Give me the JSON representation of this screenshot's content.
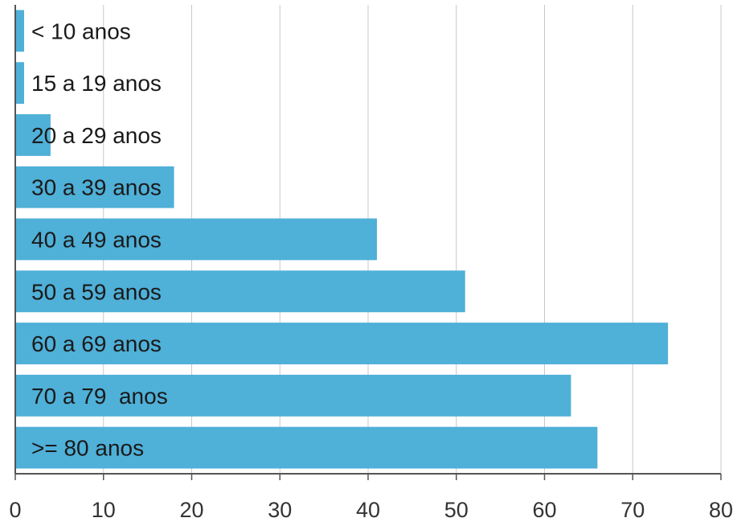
{
  "chart_data": {
    "type": "bar",
    "orientation": "horizontal",
    "categories": [
      "< 10 anos",
      "15 a 19 anos",
      "20 a 29 anos",
      "30 a 39 anos",
      "40 a 49 anos",
      "50 a 59 anos",
      "60 a 69 anos",
      "70 a 79  anos",
      ">= 80 anos"
    ],
    "values": [
      1,
      1,
      4,
      18,
      41,
      51,
      74,
      63,
      66
    ],
    "xlim": [
      0,
      80
    ],
    "x_ticks": [
      0,
      10,
      20,
      30,
      40,
      50,
      60,
      70,
      80
    ],
    "grid": "vertical",
    "bar_color": "#4fb0d8"
  }
}
